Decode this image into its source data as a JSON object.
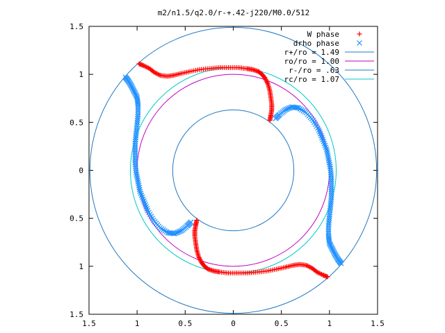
{
  "chart_data": {
    "type": "scatter",
    "title": "m2/n1.5/q2.0/r-+.42-j220/M0.0/512",
    "xlim": [
      -1.5,
      1.5
    ],
    "ylim": [
      -1.5,
      1.5
    ],
    "x_tick_labels": [
      "1.5",
      "1",
      "0.5",
      "0",
      "0.5",
      "1",
      "1.5"
    ],
    "y_tick_labels": [
      "1.5",
      "1",
      "0.5",
      "0",
      "0.5",
      "1",
      "1.5"
    ],
    "x_tick_values": [
      -1.5,
      -1,
      -0.5,
      0,
      0.5,
      1,
      1.5
    ],
    "y_tick_values": [
      1.5,
      1,
      0.5,
      0,
      -0.5,
      -1,
      -1.5
    ],
    "grid": false,
    "legend_position": "top-right",
    "series": [
      {
        "name": "W phase",
        "marker": "+",
        "color": "#ff0000",
        "kind": "points",
        "points": [
          [
            -0.98,
            1.11
          ],
          [
            -0.93,
            1.09
          ],
          [
            -0.87,
            1.06
          ],
          [
            -0.82,
            1.02
          ],
          [
            -0.76,
            0.99
          ],
          [
            -0.69,
            0.98
          ],
          [
            -0.62,
            0.99
          ],
          [
            -0.54,
            1.01
          ],
          [
            -0.45,
            1.03
          ],
          [
            -0.35,
            1.05
          ],
          [
            -0.25,
            1.06
          ],
          [
            -0.15,
            1.07
          ],
          [
            -0.05,
            1.07
          ],
          [
            0.05,
            1.07
          ],
          [
            0.14,
            1.06
          ],
          [
            0.2,
            1.05
          ],
          [
            0.26,
            1.03
          ],
          [
            0.3,
            1.0
          ],
          [
            0.33,
            0.96
          ],
          [
            0.36,
            0.9
          ],
          [
            0.38,
            0.83
          ],
          [
            0.39,
            0.76
          ],
          [
            0.4,
            0.69
          ],
          [
            0.4,
            0.63
          ],
          [
            0.39,
            0.57
          ],
          [
            0.38,
            0.52
          ],
          [
            0.98,
            -1.11
          ],
          [
            0.93,
            -1.09
          ],
          [
            0.87,
            -1.06
          ],
          [
            0.82,
            -1.02
          ],
          [
            0.76,
            -0.99
          ],
          [
            0.69,
            -0.98
          ],
          [
            0.62,
            -0.99
          ],
          [
            0.54,
            -1.01
          ],
          [
            0.45,
            -1.03
          ],
          [
            0.35,
            -1.05
          ],
          [
            0.25,
            -1.06
          ],
          [
            0.15,
            -1.07
          ],
          [
            0.05,
            -1.07
          ],
          [
            -0.05,
            -1.07
          ],
          [
            -0.14,
            -1.06
          ],
          [
            -0.2,
            -1.05
          ],
          [
            -0.26,
            -1.03
          ],
          [
            -0.3,
            -1.0
          ],
          [
            -0.33,
            -0.96
          ],
          [
            -0.36,
            -0.9
          ],
          [
            -0.38,
            -0.83
          ],
          [
            -0.39,
            -0.76
          ],
          [
            -0.4,
            -0.69
          ],
          [
            -0.4,
            -0.63
          ],
          [
            -0.39,
            -0.57
          ],
          [
            -0.38,
            -0.52
          ]
        ]
      },
      {
        "name": "drho phase",
        "marker": "x",
        "color": "#1e90ff",
        "kind": "points",
        "points": [
          [
            -1.12,
            0.97
          ],
          [
            -1.09,
            0.93
          ],
          [
            -1.06,
            0.88
          ],
          [
            -1.03,
            0.82
          ],
          [
            -1.0,
            0.76
          ],
          [
            -0.99,
            0.68
          ],
          [
            -0.99,
            0.58
          ],
          [
            -1.0,
            0.48
          ],
          [
            -1.01,
            0.38
          ],
          [
            -1.02,
            0.28
          ],
          [
            -1.02,
            0.18
          ],
          [
            -1.02,
            0.08
          ],
          [
            -1.01,
            -0.02
          ],
          [
            -0.99,
            -0.12
          ],
          [
            -0.97,
            -0.22
          ],
          [
            -0.93,
            -0.32
          ],
          [
            -0.89,
            -0.42
          ],
          [
            -0.83,
            -0.52
          ],
          [
            -0.76,
            -0.6
          ],
          [
            -0.68,
            -0.65
          ],
          [
            -0.61,
            -0.66
          ],
          [
            -0.54,
            -0.63
          ],
          [
            -0.48,
            -0.58
          ],
          [
            -0.44,
            -0.54
          ],
          [
            1.12,
            -0.97
          ],
          [
            1.09,
            -0.93
          ],
          [
            1.06,
            -0.88
          ],
          [
            1.03,
            -0.82
          ],
          [
            1.0,
            -0.76
          ],
          [
            0.99,
            -0.68
          ],
          [
            0.99,
            -0.58
          ],
          [
            1.0,
            -0.48
          ],
          [
            1.01,
            -0.38
          ],
          [
            1.02,
            -0.28
          ],
          [
            1.02,
            -0.18
          ],
          [
            1.02,
            -0.08
          ],
          [
            1.01,
            0.02
          ],
          [
            0.99,
            0.12
          ],
          [
            0.97,
            0.22
          ],
          [
            0.93,
            0.32
          ],
          [
            0.89,
            0.42
          ],
          [
            0.83,
            0.52
          ],
          [
            0.76,
            0.6
          ],
          [
            0.68,
            0.65
          ],
          [
            0.61,
            0.66
          ],
          [
            0.54,
            0.63
          ],
          [
            0.48,
            0.58
          ],
          [
            0.44,
            0.54
          ]
        ]
      },
      {
        "name": "r+/ro = 1.49",
        "kind": "circle",
        "radius": 1.49,
        "color": "#1f77c4"
      },
      {
        "name": "ro/ro = 1.00",
        "kind": "circle",
        "radius": 1.0,
        "color": "#c000c0"
      },
      {
        "name": "r-/ro = .63",
        "kind": "circle",
        "radius": 0.63,
        "color": "#1f77c4"
      },
      {
        "name": "rc/ro = 1.07",
        "kind": "circle",
        "radius": 1.07,
        "color": "#00c8c8"
      }
    ]
  }
}
